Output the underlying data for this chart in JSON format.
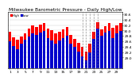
{
  "title": "Milwaukee Barometric Pressure - Daily High/Low",
  "title_fontsize": 4.2,
  "tick_fontsize": 3.2,
  "ylim": [
    28.6,
    30.7
  ],
  "yticks": [
    29.0,
    29.2,
    29.4,
    29.6,
    29.8,
    30.0,
    30.2,
    30.4,
    30.6
  ],
  "ytick_labels": [
    "29.0",
    "29.2",
    "29.4",
    "29.6",
    "29.8",
    "30.0",
    "30.2",
    "30.4",
    "30.6"
  ],
  "bar_width": 0.75,
  "high_color": "#ff0000",
  "low_color": "#0000cc",
  "background_color": "#ffffff",
  "legend_high": "High",
  "legend_low": "Low",
  "dates": [
    "1",
    "2",
    "3",
    "4",
    "5",
    "6",
    "7",
    "8",
    "9",
    "10",
    "11",
    "12",
    "13",
    "14",
    "15",
    "16",
    "17",
    "18",
    "19",
    "20",
    "21",
    "22",
    "23",
    "24",
    "25",
    "26",
    "27",
    "28",
    "29",
    "30"
  ],
  "high": [
    29.95,
    29.75,
    29.65,
    29.78,
    29.9,
    30.08,
    30.18,
    30.12,
    30.22,
    30.28,
    30.08,
    30.0,
    29.88,
    29.95,
    30.05,
    30.12,
    29.82,
    29.68,
    29.55,
    29.4,
    29.22,
    29.52,
    29.95,
    30.3,
    30.05,
    30.15,
    30.28,
    30.1,
    30.18,
    30.28
  ],
  "low": [
    29.6,
    29.42,
    29.3,
    29.5,
    29.65,
    29.78,
    29.88,
    29.82,
    29.92,
    29.98,
    29.72,
    29.62,
    29.52,
    29.62,
    29.72,
    29.8,
    29.52,
    29.4,
    29.22,
    29.05,
    28.88,
    29.18,
    29.7,
    30.08,
    29.8,
    29.92,
    29.98,
    29.72,
    29.88,
    29.98
  ],
  "dashed_cols": [
    19,
    20,
    21,
    22,
    23
  ],
  "base": 28.6
}
